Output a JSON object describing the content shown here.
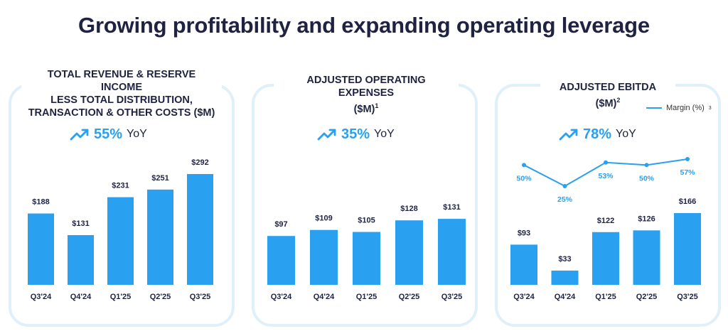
{
  "page": {
    "title": "Growing profitability and expanding operating leverage"
  },
  "colors": {
    "bar": "#2aa0f0",
    "accent": "#2aa0f0",
    "text": "#1f2341",
    "panel_border": "#dff0fb"
  },
  "yoy_icon": "trending-up-icon",
  "chart_data": [
    {
      "type": "bar",
      "title": "TOTAL REVENUE & RESERVE INCOME LESS TOTAL DISTRIBUTION, TRANSACTION & OTHER COSTS ($M)",
      "title_lines": [
        "TOTAL REVENUE & RESERVE INCOME",
        "LESS TOTAL DISTRIBUTION,",
        "TRANSACTION & OTHER COSTS ($M)"
      ],
      "yoy_value": "55%",
      "yoy_label": "YoY",
      "categories": [
        "Q3'24",
        "Q4'24",
        "Q1'25",
        "Q2'25",
        "Q3'25"
      ],
      "values": [
        188,
        131,
        231,
        251,
        292
      ],
      "labels": [
        "$188",
        "$131",
        "$231",
        "$251",
        "$292"
      ],
      "ylim": [
        0,
        292
      ]
    },
    {
      "type": "bar",
      "title": "ADJUSTED OPERATING EXPENSES ($M)1",
      "title_lines": [
        "ADJUSTED OPERATING EXPENSES",
        "($M)"
      ],
      "title_footnote": "1",
      "yoy_value": "35%",
      "yoy_label": "YoY",
      "categories": [
        "Q3'24",
        "Q4'24",
        "Q1'25",
        "Q2'25",
        "Q3'25"
      ],
      "values": [
        97,
        109,
        105,
        128,
        131
      ],
      "labels": [
        "$97",
        "$109",
        "$105",
        "$128",
        "$131"
      ],
      "ylim": [
        0,
        220
      ]
    },
    {
      "type": "bar",
      "title": "ADJUSTED EBITDA ($M)2",
      "title_lines": [
        "ADJUSTED EBITDA ($M)"
      ],
      "title_footnote": "2",
      "yoy_value": "78%",
      "yoy_label": "YoY",
      "categories": [
        "Q3'24",
        "Q4'24",
        "Q1'25",
        "Q2'25",
        "Q3'25"
      ],
      "values": [
        93,
        33,
        122,
        126,
        166
      ],
      "labels": [
        "$93",
        "$33",
        "$122",
        "$126",
        "$166"
      ],
      "ylim": [
        0,
        166
      ],
      "line_series": {
        "name": "Margin (%)",
        "footnote": "3",
        "values": [
          50,
          25,
          53,
          50,
          57
        ],
        "labels": [
          "50%",
          "25%",
          "53%",
          "50%",
          "57%"
        ],
        "ylim": [
          25,
          57
        ]
      }
    }
  ]
}
